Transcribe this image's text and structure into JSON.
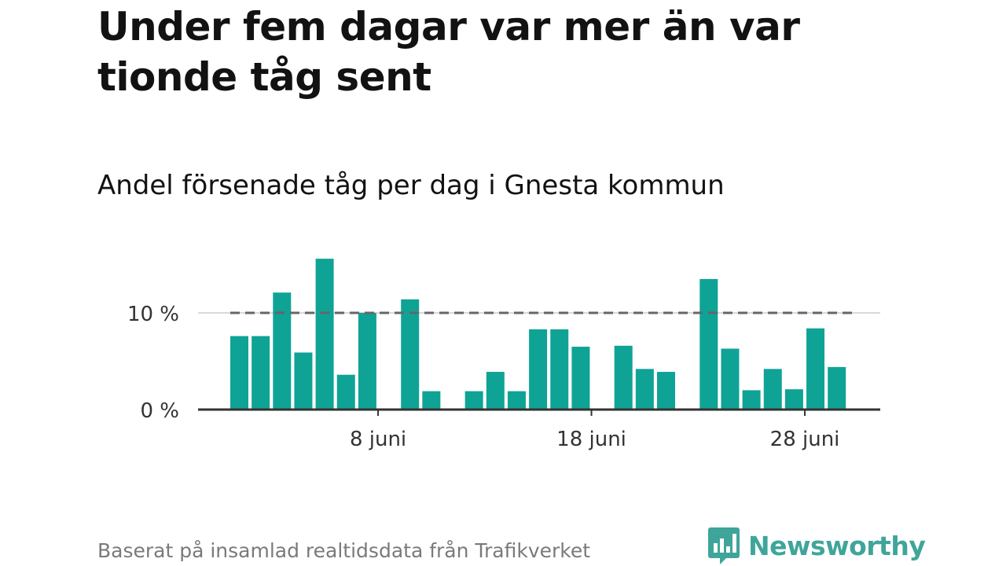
{
  "title": "Under fem dagar var mer än var tionde tåg sent",
  "subtitle": "Andel försenade tåg per dag i Gnesta kommun",
  "source": "Baserat på insamlad realtidsdata från Trafikverket",
  "brand": {
    "name": "Newsworthy",
    "icon": "newsworthy-logo-icon"
  },
  "colors": {
    "bar": "#0fa396",
    "threshold": "#666666",
    "axis": "#333333",
    "grid": "#d9d9d9",
    "brand": "#3fa59a"
  },
  "chart_data": {
    "type": "bar",
    "x_unit": "day of June",
    "days": [
      1,
      2,
      3,
      4,
      5,
      6,
      7,
      8,
      9,
      10,
      11,
      12,
      13,
      14,
      15,
      16,
      17,
      18,
      19,
      20,
      21,
      22,
      23,
      24,
      25,
      26,
      27,
      28,
      29,
      30
    ],
    "values": [
      7.6,
      7.6,
      12.1,
      5.9,
      15.6,
      3.6,
      10.0,
      null,
      11.4,
      1.9,
      null,
      1.9,
      3.9,
      1.9,
      8.3,
      8.3,
      6.5,
      null,
      6.6,
      4.2,
      3.9,
      null,
      13.5,
      6.3,
      2.0,
      4.2,
      2.1,
      8.4,
      4.4,
      null
    ],
    "ylim": [
      0,
      16
    ],
    "y_ticks": [
      0,
      10
    ],
    "y_tick_labels": [
      "0 %",
      "10 %"
    ],
    "x_ticks": [
      8,
      18,
      28
    ],
    "x_tick_labels": [
      "8 juni",
      "18 juni",
      "28 juni"
    ],
    "threshold": 10,
    "xlabel": "",
    "ylabel": "",
    "grid": true,
    "legend": "none"
  }
}
